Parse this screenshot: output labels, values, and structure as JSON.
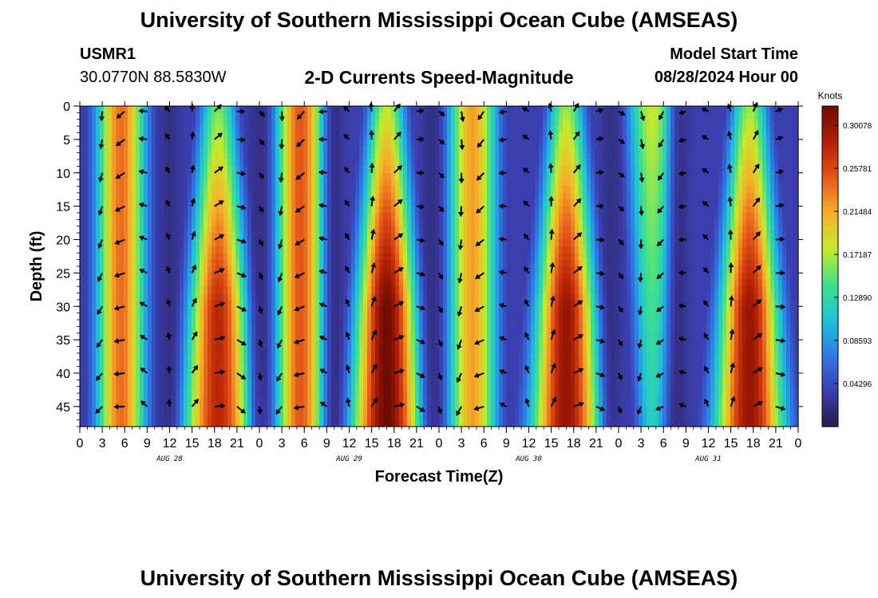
{
  "header": {
    "title": "University of Southern Mississippi Ocean Cube (AMSEAS)",
    "station_id": "USMR1",
    "coordinates": "30.0770N  88.5830W",
    "subtitle": "2-D Currents Speed-Magnitude",
    "model_start_label": "Model Start Time",
    "model_start_value": "08/28/2024 Hour 00"
  },
  "footer": {
    "title": "University of Southern Mississippi Ocean Cube (AMSEAS)"
  },
  "chart_data": {
    "type": "heatmap",
    "title": "2-D Currents Speed-Magnitude",
    "xlabel": "Forecast Time(Z)",
    "ylabel": "Depth (ft)",
    "colorbar_label": "Knots",
    "xlim_hours": [
      0,
      96
    ],
    "ylim": [
      0,
      48
    ],
    "x_tick_labels": [
      "0",
      "3",
      "6",
      "9",
      "12",
      "15",
      "18",
      "21",
      "0",
      "3",
      "6",
      "9",
      "12",
      "15",
      "18",
      "21",
      "0",
      "3",
      "6",
      "9",
      "12",
      "15",
      "18",
      "21",
      "0",
      "3",
      "6",
      "9",
      "12",
      "15",
      "18",
      "21",
      "0"
    ],
    "date_labels": [
      "AUG 28",
      "AUG 29",
      "AUG 30",
      "AUG 31"
    ],
    "y_ticks": [
      0,
      5,
      10,
      15,
      20,
      25,
      30,
      35,
      40,
      45
    ],
    "colorbar_ticks": [
      "0.30078",
      "0.25781",
      "0.21484",
      "0.17187",
      "0.12890",
      "0.08593",
      "0.04296"
    ],
    "colorbar_range": [
      0.0,
      0.32
    ],
    "colormap": [
      "#2a1a4a",
      "#3b3fb0",
      "#2f78e8",
      "#1ec3d6",
      "#3fe08a",
      "#c6ea2a",
      "#f6b02a",
      "#e4561a",
      "#b32004",
      "#6e0b04"
    ],
    "speed_peaks": [
      {
        "time_hours": 5.5,
        "speed_knots": 0.24,
        "depth_profile": "uniform"
      },
      {
        "time_hours": 18.5,
        "speed_knots": 0.28,
        "depth_profile": "deep"
      },
      {
        "time_hours": 29.5,
        "speed_knots": 0.25,
        "depth_profile": "uniform"
      },
      {
        "time_hours": 41.0,
        "speed_knots": 0.32,
        "depth_profile": "deep"
      },
      {
        "time_hours": 52.5,
        "speed_knots": 0.22,
        "depth_profile": "uniform"
      },
      {
        "time_hours": 65.0,
        "speed_knots": 0.3,
        "depth_profile": "deep"
      },
      {
        "time_hours": 76.5,
        "speed_knots": 0.18,
        "depth_profile": "shallow"
      },
      {
        "time_hours": 89.5,
        "speed_knots": 0.3,
        "depth_profile": "deep"
      }
    ],
    "speed_minima_hours": [
      12,
      24,
      34,
      47,
      71,
      80
    ],
    "vector_arrow_interval_hours": 3,
    "vector_depths_ft": [
      0,
      5,
      10,
      15,
      20,
      25,
      30,
      35,
      40,
      45
    ]
  }
}
